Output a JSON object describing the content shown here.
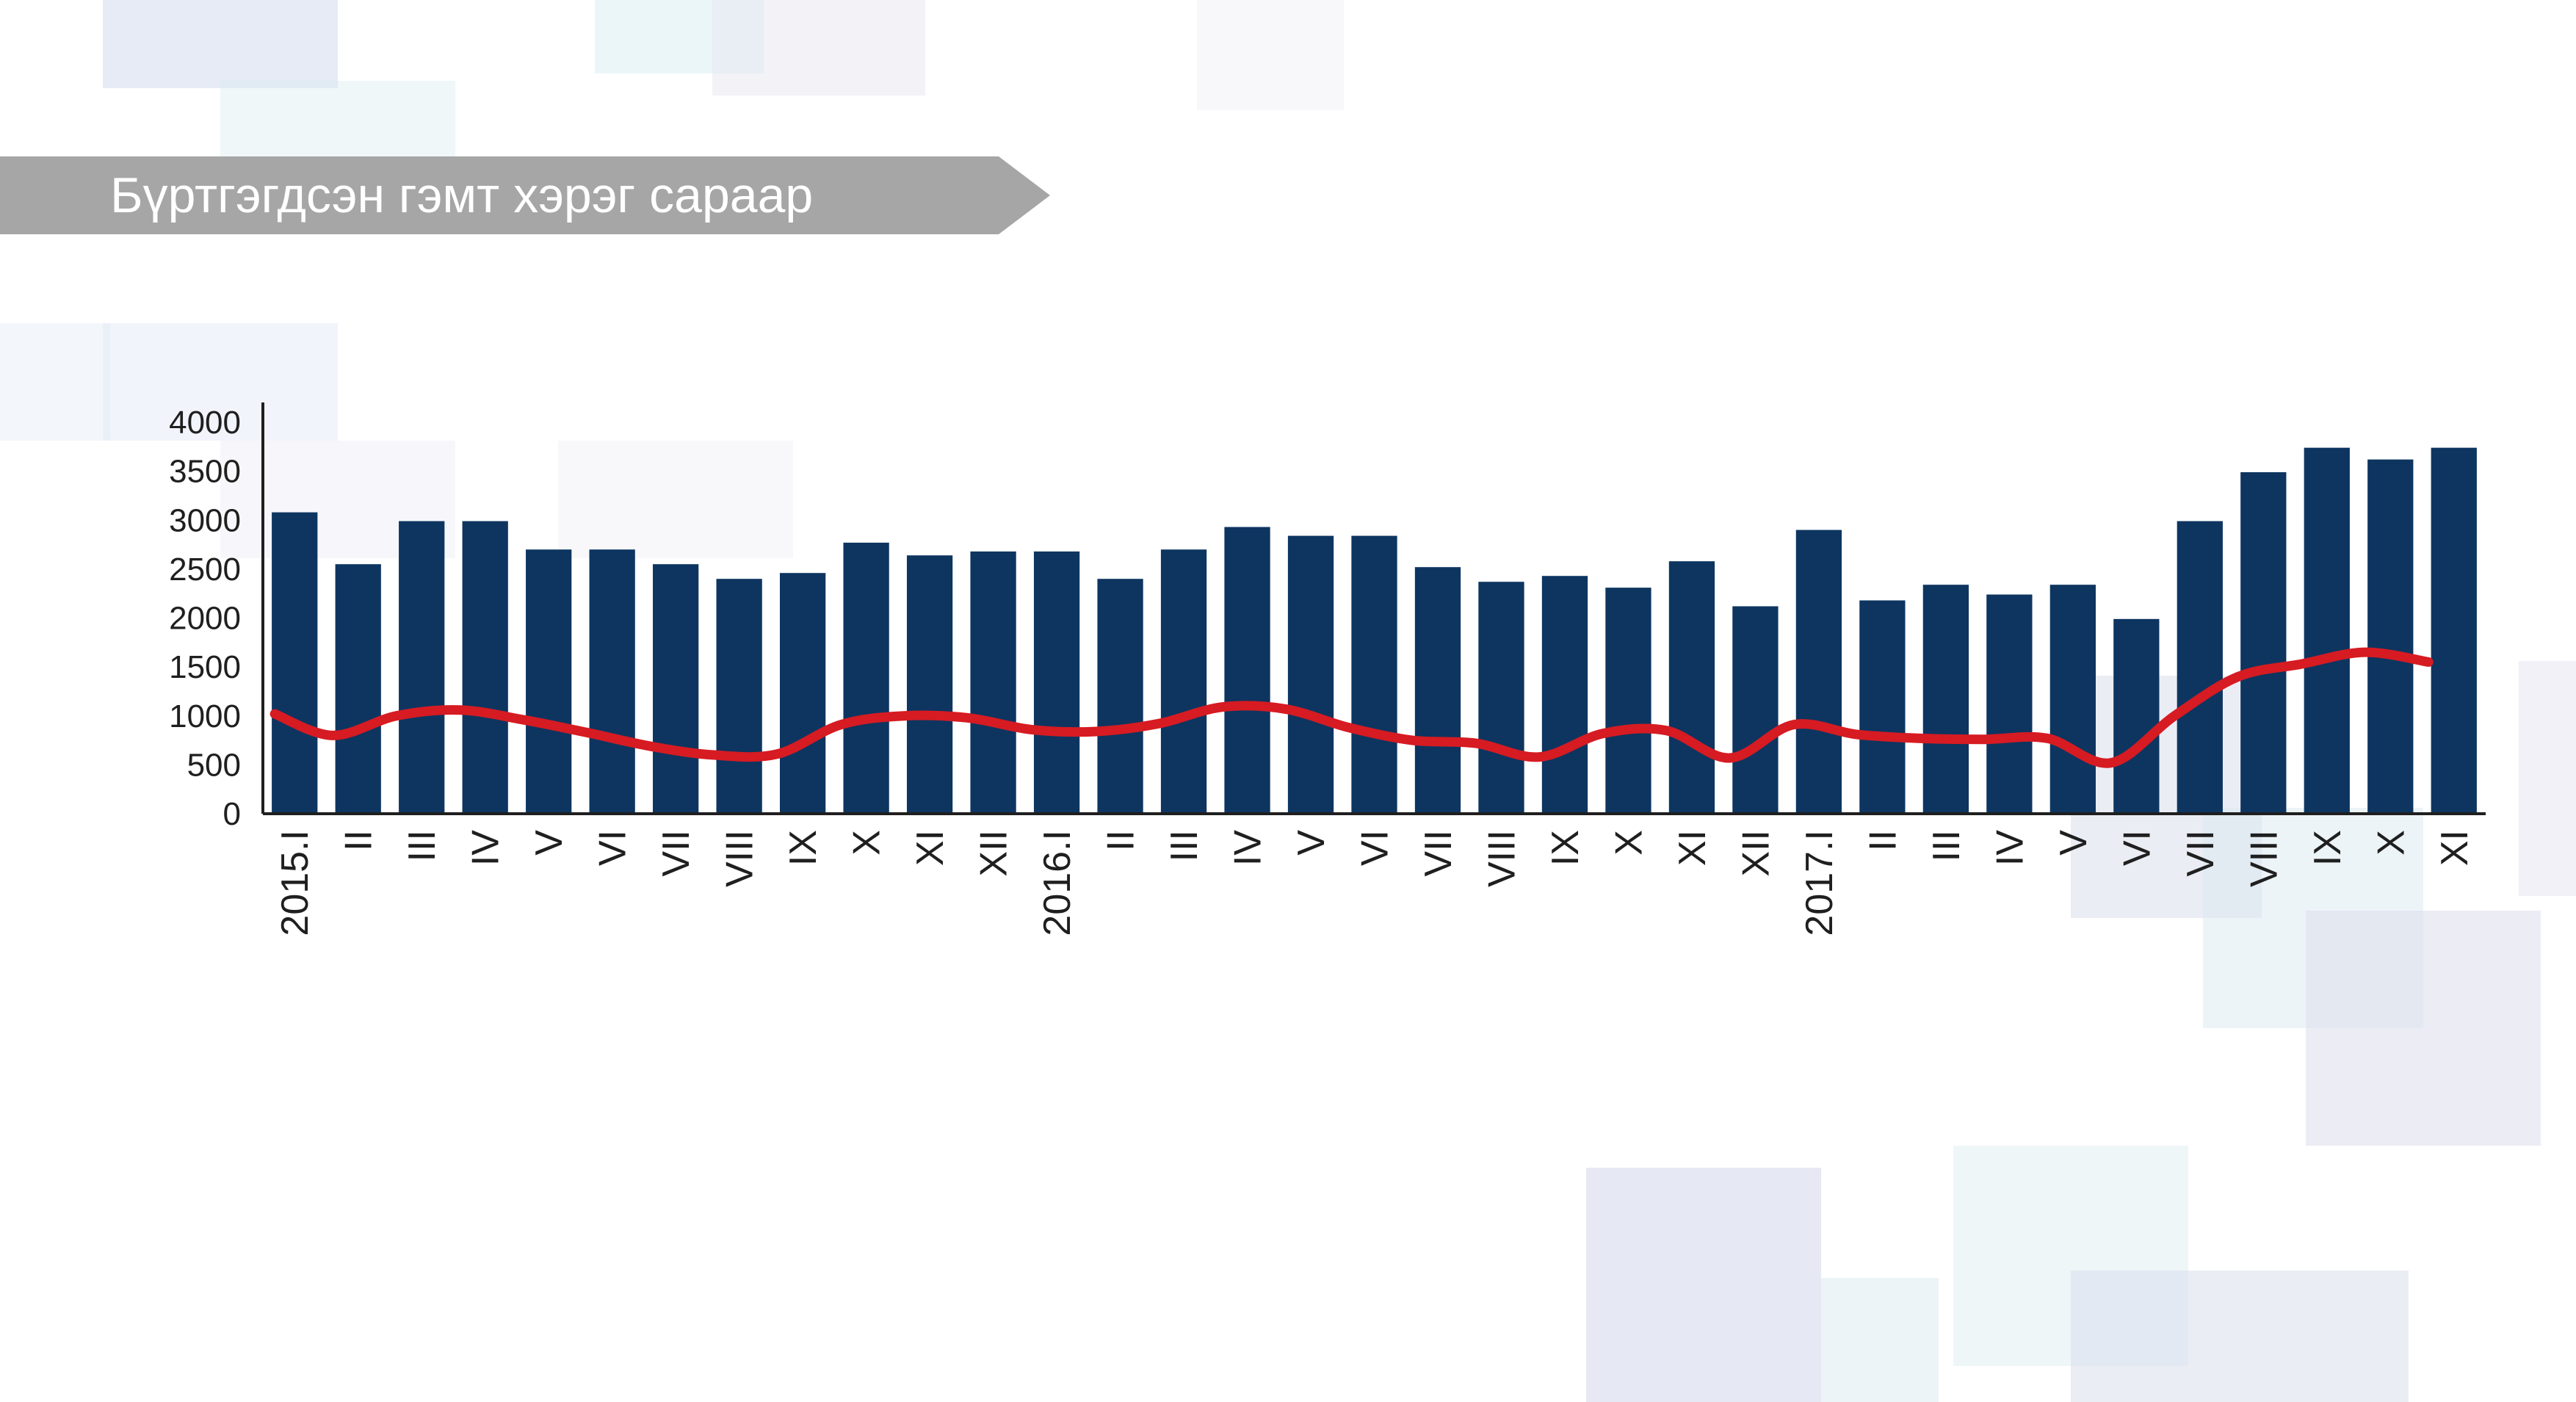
{
  "banner": {
    "title": "Бүртгэгдсэн гэмт хэрэг сараар"
  },
  "colors": {
    "bar": "#0d3560",
    "line": "#d61b22",
    "banner": "#a6a6a6",
    "axis": "#1f1f1f"
  },
  "chart_data": {
    "type": "bar",
    "title": "Бүртгэгдсэн гэмт хэрэг сараар",
    "xlabel": "",
    "ylabel": "",
    "ylim": [
      0,
      4000
    ],
    "yticks": [
      "0",
      "500",
      "1000",
      "1500",
      "2000",
      "2500",
      "3000",
      "3500",
      "4000"
    ],
    "grid": false,
    "legend": "none",
    "categories": [
      "2015.I",
      "II",
      "III",
      "IV",
      "V",
      "VI",
      "VII",
      "VIII",
      "IX",
      "X",
      "XI",
      "XII",
      "2016.I",
      "II",
      "III",
      "IV",
      "V",
      "VI",
      "VII",
      "VIII",
      "IX",
      "X",
      "XI",
      "XII",
      "2017.I",
      "II",
      "III",
      "IV",
      "V",
      "VI",
      "VII",
      "VIII",
      "IX",
      "X",
      "XI"
    ],
    "series": [
      {
        "type": "bar",
        "values": [
          3080,
          2550,
          2990,
          2990,
          2700,
          2700,
          2550,
          2400,
          2460,
          2770,
          2640,
          2680,
          2680,
          2400,
          2700,
          2930,
          2840,
          2840,
          2520,
          2370,
          2430,
          2310,
          2580,
          2120,
          2900,
          2180,
          2340,
          2240,
          2340,
          1990,
          2990,
          3490,
          3740,
          3620,
          3740
        ]
      },
      {
        "type": "line",
        "values": [
          1020,
          800,
          1000,
          1060,
          960,
          830,
          690,
          600,
          610,
          910,
          1000,
          980,
          860,
          840,
          920,
          1090,
          1070,
          880,
          750,
          720,
          580,
          820,
          850,
          570,
          910,
          810,
          770,
          760,
          770,
          520,
          1000,
          1400,
          1530,
          1650,
          1550
        ]
      }
    ]
  }
}
